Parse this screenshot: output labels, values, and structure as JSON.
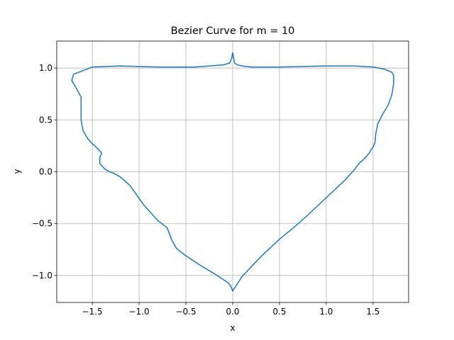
{
  "chart_data": {
    "type": "line",
    "title": "Bezier Curve for m = 10",
    "xlabel": "x",
    "ylabel": "y",
    "xlim": [
      -1.88,
      1.88
    ],
    "ylim": [
      -1.26,
      1.26
    ],
    "xticks": [
      -1.5,
      -1.0,
      -0.5,
      0.0,
      0.5,
      1.0,
      1.5
    ],
    "xtick_labels": [
      "−1.5",
      "−1.0",
      "−0.5",
      "0.0",
      "0.5",
      "1.0",
      "1.5"
    ],
    "yticks": [
      -1.0,
      -0.5,
      0.0,
      0.5,
      1.0
    ],
    "ytick_labels": [
      "−1.0",
      "−0.5",
      "0.0",
      "0.5",
      "1.0"
    ],
    "grid": true,
    "line_color": "#1f77b4",
    "series": [
      {
        "x": [
          0.0,
          0.02,
          0.05,
          0.1,
          0.2,
          0.5,
          1.0,
          1.3,
          1.5,
          1.62,
          1.7,
          1.72,
          1.72,
          1.7,
          1.66,
          1.6,
          1.55,
          1.53,
          1.52,
          1.5,
          1.45,
          1.4,
          1.35,
          1.3,
          1.2,
          1.0,
          0.8,
          0.65,
          0.5,
          0.3,
          0.1,
          0.0,
          -0.02,
          -0.05,
          -0.1,
          -0.2,
          -0.35,
          -0.5,
          -0.6,
          -0.65,
          -0.7,
          -0.8,
          -0.95,
          -1.1,
          -1.2,
          -1.28,
          -1.32,
          -1.37,
          -1.42,
          -1.42,
          -1.4,
          -1.45,
          -1.5,
          -1.55,
          -1.6,
          -1.62,
          -1.62,
          -1.62,
          -1.68,
          -1.72,
          -1.7,
          -1.5,
          -1.2,
          -0.8,
          -0.4,
          -0.1,
          -0.03,
          -0.01,
          0.0
        ],
        "y": [
          1.15,
          1.05,
          1.03,
          1.02,
          1.01,
          1.01,
          1.02,
          1.02,
          1.01,
          0.99,
          0.96,
          0.93,
          0.85,
          0.74,
          0.64,
          0.55,
          0.46,
          0.37,
          0.28,
          0.24,
          0.17,
          0.12,
          0.08,
          0.02,
          -0.08,
          -0.25,
          -0.42,
          -0.54,
          -0.65,
          -0.82,
          -1.01,
          -1.15,
          -1.1,
          -1.07,
          -1.04,
          -0.98,
          -0.9,
          -0.81,
          -0.74,
          -0.66,
          -0.54,
          -0.47,
          -0.32,
          -0.13,
          -0.05,
          -0.01,
          0.0,
          0.03,
          0.08,
          0.14,
          0.18,
          0.23,
          0.27,
          0.32,
          0.4,
          0.5,
          0.6,
          0.72,
          0.82,
          0.88,
          0.94,
          1.01,
          1.02,
          1.01,
          1.01,
          1.03,
          1.05,
          1.1,
          1.15
        ]
      }
    ]
  }
}
